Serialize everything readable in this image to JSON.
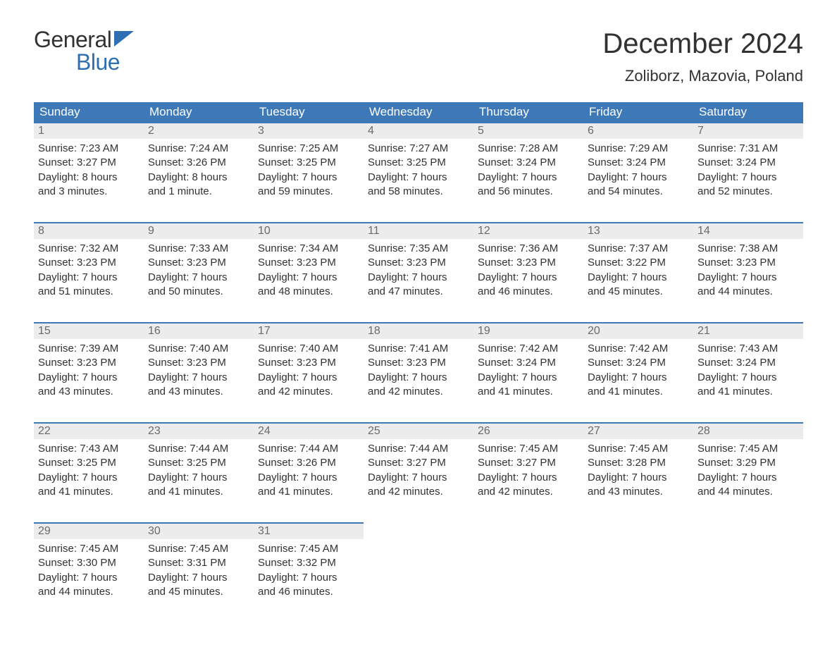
{
  "logo": {
    "word1": "General",
    "word2": "Blue"
  },
  "title": "December 2024",
  "subtitle": "Zoliborz, Mazovia, Poland",
  "colors": {
    "header_bg": "#3d79b8",
    "header_text": "#ffffff",
    "daynum_bg": "#ececec",
    "daynum_text": "#6b6b6b",
    "row_divider": "#3d79b8",
    "body_text": "#323232",
    "logo_blue": "#2f6fb1",
    "page_bg": "#ffffff"
  },
  "day_headers": [
    "Sunday",
    "Monday",
    "Tuesday",
    "Wednesday",
    "Thursday",
    "Friday",
    "Saturday"
  ],
  "weeks": [
    {
      "days": [
        {
          "num": "1",
          "sunrise": "7:23 AM",
          "sunset": "3:27 PM",
          "daylight_l1": "Daylight: 8 hours",
          "daylight_l2": "and 3 minutes."
        },
        {
          "num": "2",
          "sunrise": "7:24 AM",
          "sunset": "3:26 PM",
          "daylight_l1": "Daylight: 8 hours",
          "daylight_l2": "and 1 minute."
        },
        {
          "num": "3",
          "sunrise": "7:25 AM",
          "sunset": "3:25 PM",
          "daylight_l1": "Daylight: 7 hours",
          "daylight_l2": "and 59 minutes."
        },
        {
          "num": "4",
          "sunrise": "7:27 AM",
          "sunset": "3:25 PM",
          "daylight_l1": "Daylight: 7 hours",
          "daylight_l2": "and 58 minutes."
        },
        {
          "num": "5",
          "sunrise": "7:28 AM",
          "sunset": "3:24 PM",
          "daylight_l1": "Daylight: 7 hours",
          "daylight_l2": "and 56 minutes."
        },
        {
          "num": "6",
          "sunrise": "7:29 AM",
          "sunset": "3:24 PM",
          "daylight_l1": "Daylight: 7 hours",
          "daylight_l2": "and 54 minutes."
        },
        {
          "num": "7",
          "sunrise": "7:31 AM",
          "sunset": "3:24 PM",
          "daylight_l1": "Daylight: 7 hours",
          "daylight_l2": "and 52 minutes."
        }
      ]
    },
    {
      "days": [
        {
          "num": "8",
          "sunrise": "7:32 AM",
          "sunset": "3:23 PM",
          "daylight_l1": "Daylight: 7 hours",
          "daylight_l2": "and 51 minutes."
        },
        {
          "num": "9",
          "sunrise": "7:33 AM",
          "sunset": "3:23 PM",
          "daylight_l1": "Daylight: 7 hours",
          "daylight_l2": "and 50 minutes."
        },
        {
          "num": "10",
          "sunrise": "7:34 AM",
          "sunset": "3:23 PM",
          "daylight_l1": "Daylight: 7 hours",
          "daylight_l2": "and 48 minutes."
        },
        {
          "num": "11",
          "sunrise": "7:35 AM",
          "sunset": "3:23 PM",
          "daylight_l1": "Daylight: 7 hours",
          "daylight_l2": "and 47 minutes."
        },
        {
          "num": "12",
          "sunrise": "7:36 AM",
          "sunset": "3:23 PM",
          "daylight_l1": "Daylight: 7 hours",
          "daylight_l2": "and 46 minutes."
        },
        {
          "num": "13",
          "sunrise": "7:37 AM",
          "sunset": "3:22 PM",
          "daylight_l1": "Daylight: 7 hours",
          "daylight_l2": "and 45 minutes."
        },
        {
          "num": "14",
          "sunrise": "7:38 AM",
          "sunset": "3:23 PM",
          "daylight_l1": "Daylight: 7 hours",
          "daylight_l2": "and 44 minutes."
        }
      ]
    },
    {
      "days": [
        {
          "num": "15",
          "sunrise": "7:39 AM",
          "sunset": "3:23 PM",
          "daylight_l1": "Daylight: 7 hours",
          "daylight_l2": "and 43 minutes."
        },
        {
          "num": "16",
          "sunrise": "7:40 AM",
          "sunset": "3:23 PM",
          "daylight_l1": "Daylight: 7 hours",
          "daylight_l2": "and 43 minutes."
        },
        {
          "num": "17",
          "sunrise": "7:40 AM",
          "sunset": "3:23 PM",
          "daylight_l1": "Daylight: 7 hours",
          "daylight_l2": "and 42 minutes."
        },
        {
          "num": "18",
          "sunrise": "7:41 AM",
          "sunset": "3:23 PM",
          "daylight_l1": "Daylight: 7 hours",
          "daylight_l2": "and 42 minutes."
        },
        {
          "num": "19",
          "sunrise": "7:42 AM",
          "sunset": "3:24 PM",
          "daylight_l1": "Daylight: 7 hours",
          "daylight_l2": "and 41 minutes."
        },
        {
          "num": "20",
          "sunrise": "7:42 AM",
          "sunset": "3:24 PM",
          "daylight_l1": "Daylight: 7 hours",
          "daylight_l2": "and 41 minutes."
        },
        {
          "num": "21",
          "sunrise": "7:43 AM",
          "sunset": "3:24 PM",
          "daylight_l1": "Daylight: 7 hours",
          "daylight_l2": "and 41 minutes."
        }
      ]
    },
    {
      "days": [
        {
          "num": "22",
          "sunrise": "7:43 AM",
          "sunset": "3:25 PM",
          "daylight_l1": "Daylight: 7 hours",
          "daylight_l2": "and 41 minutes."
        },
        {
          "num": "23",
          "sunrise": "7:44 AM",
          "sunset": "3:25 PM",
          "daylight_l1": "Daylight: 7 hours",
          "daylight_l2": "and 41 minutes."
        },
        {
          "num": "24",
          "sunrise": "7:44 AM",
          "sunset": "3:26 PM",
          "daylight_l1": "Daylight: 7 hours",
          "daylight_l2": "and 41 minutes."
        },
        {
          "num": "25",
          "sunrise": "7:44 AM",
          "sunset": "3:27 PM",
          "daylight_l1": "Daylight: 7 hours",
          "daylight_l2": "and 42 minutes."
        },
        {
          "num": "26",
          "sunrise": "7:45 AM",
          "sunset": "3:27 PM",
          "daylight_l1": "Daylight: 7 hours",
          "daylight_l2": "and 42 minutes."
        },
        {
          "num": "27",
          "sunrise": "7:45 AM",
          "sunset": "3:28 PM",
          "daylight_l1": "Daylight: 7 hours",
          "daylight_l2": "and 43 minutes."
        },
        {
          "num": "28",
          "sunrise": "7:45 AM",
          "sunset": "3:29 PM",
          "daylight_l1": "Daylight: 7 hours",
          "daylight_l2": "and 44 minutes."
        }
      ]
    },
    {
      "days": [
        {
          "num": "29",
          "sunrise": "7:45 AM",
          "sunset": "3:30 PM",
          "daylight_l1": "Daylight: 7 hours",
          "daylight_l2": "and 44 minutes."
        },
        {
          "num": "30",
          "sunrise": "7:45 AM",
          "sunset": "3:31 PM",
          "daylight_l1": "Daylight: 7 hours",
          "daylight_l2": "and 45 minutes."
        },
        {
          "num": "31",
          "sunrise": "7:45 AM",
          "sunset": "3:32 PM",
          "daylight_l1": "Daylight: 7 hours",
          "daylight_l2": "and 46 minutes."
        },
        null,
        null,
        null,
        null
      ]
    }
  ],
  "labels": {
    "sunrise_prefix": "Sunrise: ",
    "sunset_prefix": "Sunset: "
  }
}
